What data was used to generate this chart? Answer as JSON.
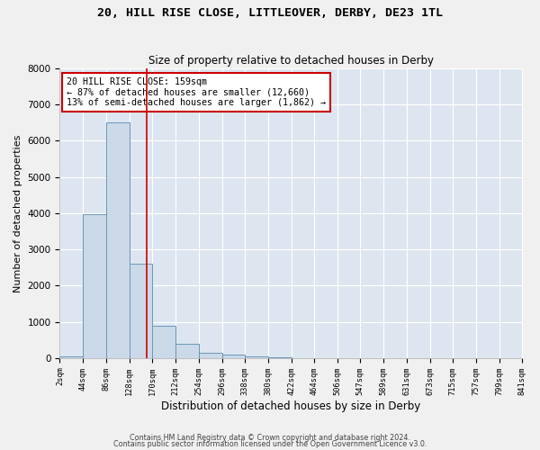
{
  "title1": "20, HILL RISE CLOSE, LITTLEOVER, DERBY, DE23 1TL",
  "title2": "Size of property relative to detached houses in Derby",
  "xlabel": "Distribution of detached houses by size in Derby",
  "ylabel": "Number of detached properties",
  "bar_color": "#ccd9e8",
  "bar_edge_color": "#6b96b8",
  "background_color": "#dde6f0",
  "grid_color": "#ffffff",
  "fig_background": "#f0f0f0",
  "annotation_box_color": "#cc0000",
  "vline_color": "#cc0000",
  "vline_x": 159,
  "bin_edges": [
    2,
    44,
    86,
    128,
    170,
    212,
    254,
    296,
    338,
    380,
    422,
    464,
    506,
    547,
    589,
    631,
    673,
    715,
    757,
    799,
    841
  ],
  "bar_heights": [
    50,
    3980,
    6520,
    2600,
    880,
    390,
    145,
    100,
    50,
    10,
    5,
    2,
    1,
    0,
    0,
    0,
    0,
    0,
    0,
    0
  ],
  "ylim": [
    0,
    8000
  ],
  "yticks": [
    0,
    1000,
    2000,
    3000,
    4000,
    5000,
    6000,
    7000,
    8000
  ],
  "annotation_text": "20 HILL RISE CLOSE: 159sqm\n← 87% of detached houses are smaller (12,660)\n13% of semi-detached houses are larger (1,862) →",
  "footer1": "Contains HM Land Registry data © Crown copyright and database right 2024.",
  "footer2": "Contains public sector information licensed under the Open Government Licence v3.0."
}
